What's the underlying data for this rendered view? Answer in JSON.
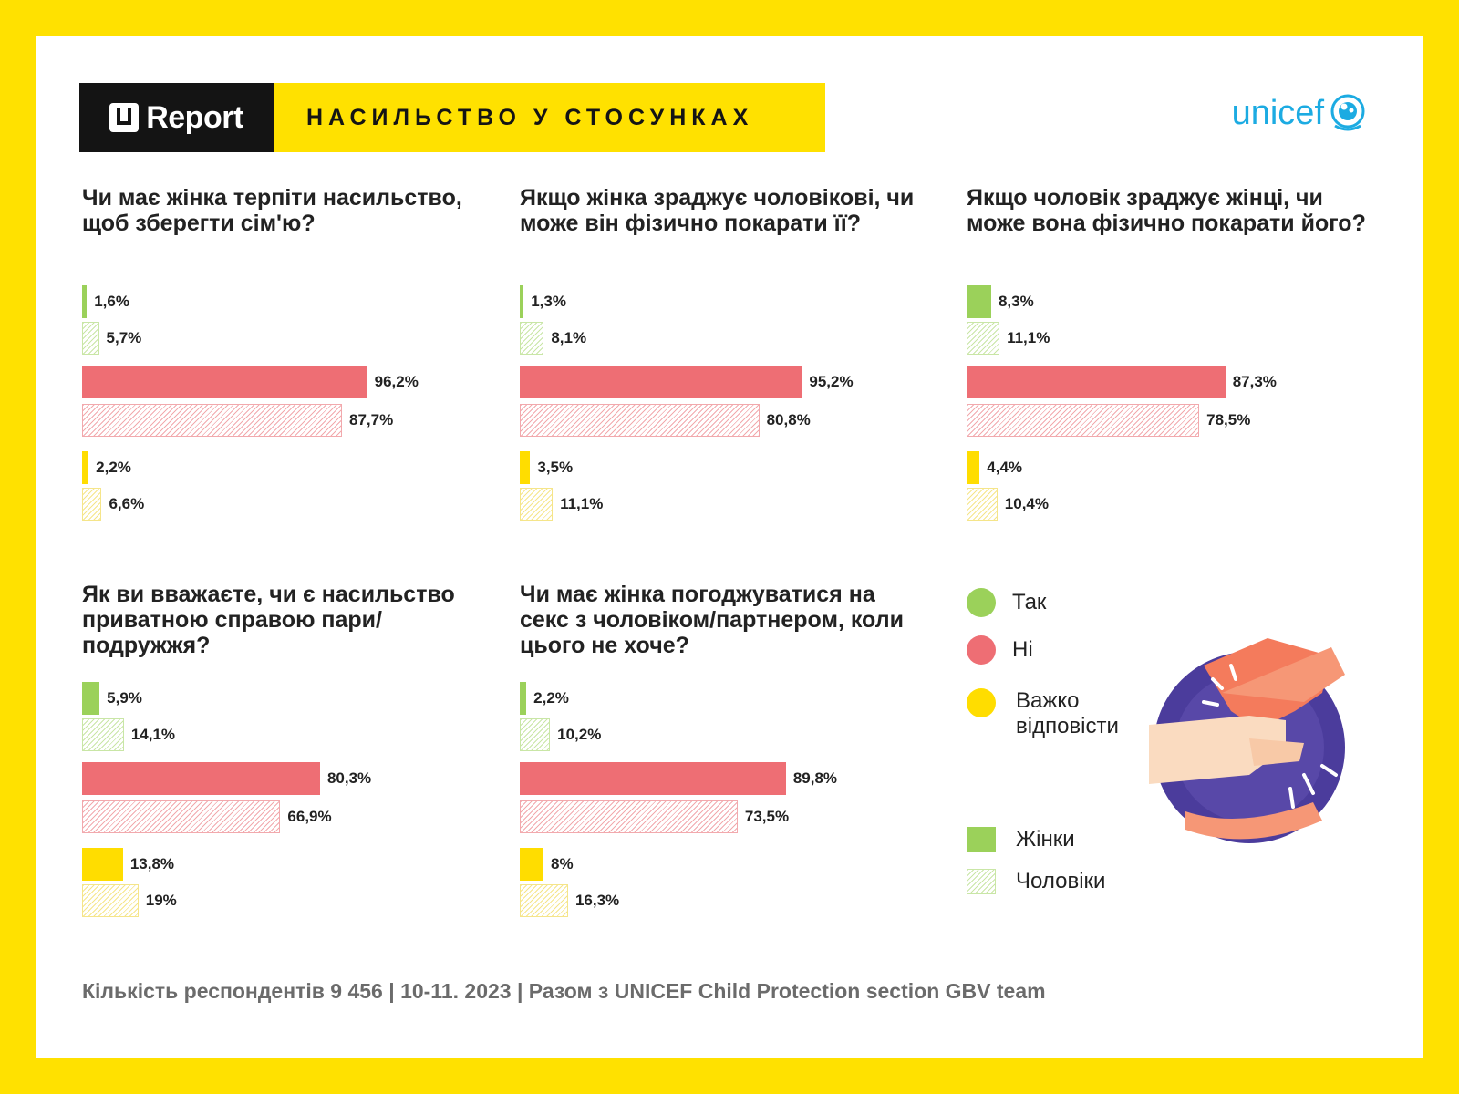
{
  "header": {
    "logo_text": "Report",
    "title": "НАСИЛЬСТВО У СТОСУНКАХ",
    "partner": "unicef"
  },
  "colors": {
    "yes": "#9BD15A",
    "no": "#EE6E74",
    "hard": "#FFDD00",
    "background": "#FFE100"
  },
  "legend": {
    "yes": "Так",
    "no": "Ні",
    "hard": "Важко відповісти",
    "women": "Жінки",
    "men": "Чоловіки"
  },
  "footer": "Кількість респондентів 9 456 | 10-11. 2023 | Разом з UNICEF Child Protection section GBV team",
  "chart_data": [
    {
      "type": "bar",
      "title": "Чи має жінка терпіти насильство, щоб зберегти сім'ю?",
      "categories": [
        "Так",
        "Ні",
        "Важко відповісти"
      ],
      "series": [
        {
          "name": "Жінки",
          "values": [
            1.6,
            96.2,
            2.2
          ],
          "labels": [
            "1,6%",
            "96,2%",
            "2,2%"
          ]
        },
        {
          "name": "Чоловіки",
          "values": [
            5.7,
            87.7,
            6.6
          ],
          "labels": [
            "5,7%",
            "87,7%",
            "6,6%"
          ]
        }
      ]
    },
    {
      "type": "bar",
      "title": "Якщо жінка зраджує чоловікові, чи може він фізично покарати її?",
      "categories": [
        "Так",
        "Ні",
        "Важко відповісти"
      ],
      "series": [
        {
          "name": "Жінки",
          "values": [
            1.3,
            95.2,
            3.5
          ],
          "labels": [
            "1,3%",
            "95,2%",
            "3,5%"
          ]
        },
        {
          "name": "Чоловіки",
          "values": [
            8.1,
            80.8,
            11.1
          ],
          "labels": [
            "8,1%",
            "80,8%",
            "11,1%"
          ]
        }
      ]
    },
    {
      "type": "bar",
      "title": "Якщо чоловік зраджує жінці, чи може вона фізично покарати його?",
      "categories": [
        "Так",
        "Ні",
        "Важко відповісти"
      ],
      "series": [
        {
          "name": "Жінки",
          "values": [
            8.3,
            87.3,
            4.4
          ],
          "labels": [
            "8,3%",
            "87,3%",
            "4,4%"
          ]
        },
        {
          "name": "Чоловіки",
          "values": [
            11.1,
            78.5,
            10.4
          ],
          "labels": [
            "11,1%",
            "78,5%",
            "10,4%"
          ]
        }
      ]
    },
    {
      "type": "bar",
      "title": "Як ви вважаєте, чи є насильство приватною справою пари/подружжя?",
      "categories": [
        "Так",
        "Ні",
        "Важко відповісти"
      ],
      "series": [
        {
          "name": "Жінки",
          "values": [
            5.9,
            80.3,
            13.8
          ],
          "labels": [
            "5,9%",
            "80,3%",
            "13,8%"
          ]
        },
        {
          "name": "Чоловіки",
          "values": [
            14.1,
            66.9,
            19
          ],
          "labels": [
            "14,1%",
            "66,9%",
            "19%"
          ]
        }
      ]
    },
    {
      "type": "bar",
      "title": "Чи має жінка погоджуватися на секс з чоловіком/партнером, коли цього не хоче?",
      "categories": [
        "Так",
        "Ні",
        "Важко відповісти"
      ],
      "series": [
        {
          "name": "Жінки",
          "values": [
            2.2,
            89.8,
            8
          ],
          "labels": [
            "2,2%",
            "89,8%",
            "8%"
          ]
        },
        {
          "name": "Чоловіки",
          "values": [
            10.2,
            73.5,
            16.3
          ],
          "labels": [
            "10,2%",
            "73,5%",
            "16,3%"
          ]
        }
      ]
    }
  ]
}
